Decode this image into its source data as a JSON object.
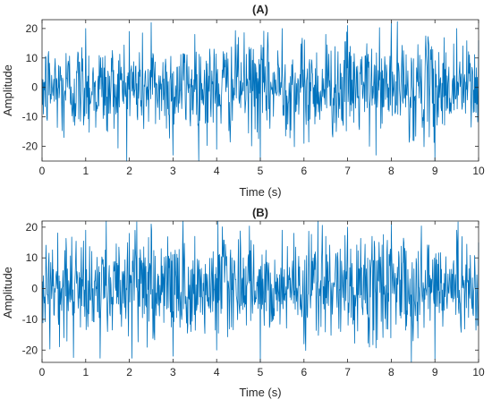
{
  "chart_data": [
    {
      "type": "line",
      "title": "(A)",
      "xlabel": "Time (s)",
      "ylabel": "Amplitude",
      "xlim": [
        0,
        10
      ],
      "ylim": [
        -25,
        23
      ],
      "xticks": [
        0,
        1,
        2,
        3,
        4,
        5,
        6,
        7,
        8,
        9,
        10
      ],
      "yticks": [
        -20,
        -10,
        0,
        10,
        20
      ],
      "grid": false,
      "legend": "none",
      "line_color": "#0072BD",
      "signal": {
        "sample_interval": 0.01,
        "samples": 1001,
        "amplitude_std": 8,
        "min": -25,
        "max": 23
      },
      "series": [
        {
          "x": [
            0,
            0.5,
            1,
            1.5,
            2,
            2.5,
            3,
            3.5,
            4,
            4.5,
            5,
            5.5,
            6,
            6.5,
            7,
            7.5,
            8,
            8.5,
            9,
            9.5,
            10
          ],
          "y": [
            3,
            -17,
            20,
            -15,
            19,
            22,
            -23,
            18,
            -21,
            17,
            -25,
            20,
            -19,
            18,
            21,
            -20,
            22,
            -18,
            -25,
            20,
            16
          ]
        }
      ]
    },
    {
      "type": "line",
      "title": "(B)",
      "xlabel": "Time (s)",
      "ylabel": "Amplitude",
      "xlim": [
        0,
        10
      ],
      "ylim": [
        -24,
        22
      ],
      "xticks": [
        0,
        1,
        2,
        3,
        4,
        5,
        6,
        7,
        8,
        9,
        10
      ],
      "yticks": [
        -20,
        -10,
        0,
        10,
        20
      ],
      "grid": false,
      "legend": "none",
      "line_color": "#0072BD",
      "signal": {
        "sample_interval": 0.01,
        "samples": 1001,
        "amplitude_std": 8,
        "min": -24,
        "max": 22
      },
      "series": [
        {
          "x": [
            0,
            0.5,
            1,
            1.5,
            2,
            2.5,
            3,
            3.5,
            4,
            4.5,
            5,
            5.5,
            6,
            6.5,
            7,
            7.5,
            8,
            8.5,
            9,
            9.5,
            10
          ],
          "y": [
            2,
            -16,
            19,
            -14,
            18,
            21,
            -22,
            17,
            -20,
            16,
            -24,
            19,
            -18,
            17,
            20,
            -19,
            21,
            -17,
            -23,
            19,
            15
          ]
        }
      ]
    }
  ]
}
